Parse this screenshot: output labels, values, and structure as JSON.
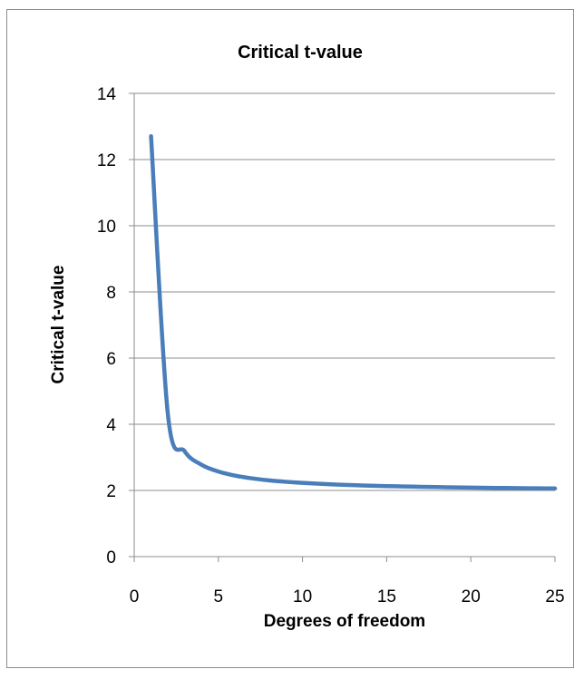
{
  "chart_data": {
    "type": "line",
    "title": "Critical t-value",
    "xlabel": "Degrees of freedom",
    "ylabel": "Critical t-value",
    "xlim": [
      0,
      25
    ],
    "ylim": [
      0,
      14
    ],
    "xticks": [
      0,
      5,
      10,
      15,
      20,
      25
    ],
    "yticks": [
      0,
      2,
      4,
      6,
      8,
      10,
      12,
      14
    ],
    "grid": "horizontal",
    "legend": "none",
    "series": [
      {
        "color": "#4a7ebb",
        "x": [
          1,
          2,
          3,
          4,
          5,
          6,
          7,
          8,
          9,
          10,
          11,
          12,
          13,
          14,
          15,
          16,
          17,
          18,
          19,
          20,
          21,
          22,
          23,
          24,
          25
        ],
        "y": [
          12.706,
          4.303,
          3.182,
          2.776,
          2.571,
          2.447,
          2.365,
          2.306,
          2.262,
          2.228,
          2.201,
          2.179,
          2.16,
          2.145,
          2.131,
          2.12,
          2.11,
          2.101,
          2.093,
          2.086,
          2.08,
          2.074,
          2.069,
          2.064,
          2.06
        ]
      }
    ]
  }
}
